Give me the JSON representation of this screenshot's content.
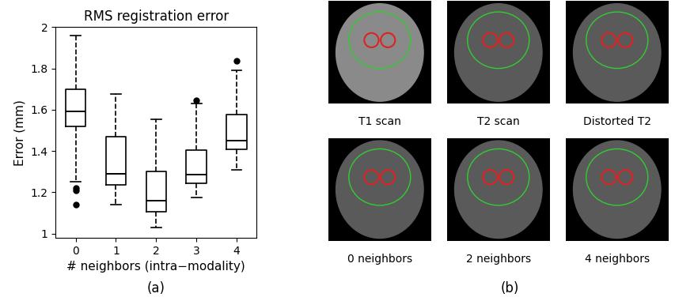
{
  "chart_data": {
    "type": "box",
    "title": "RMS registration error",
    "x_label": "# neighbors (intra−modality)",
    "y_label": "Error (mm)",
    "categories": [
      "0",
      "1",
      "2",
      "3",
      "4"
    ],
    "boxes": [
      {
        "whislo": 1.25,
        "q1": 1.52,
        "med": 1.59,
        "q3": 1.7,
        "whishi": 1.96,
        "fliers": [
          1.14,
          1.21,
          1.22
        ]
      },
      {
        "whislo": 1.14,
        "q1": 1.235,
        "med": 1.29,
        "q3": 1.47,
        "whishi": 1.675,
        "fliers": []
      },
      {
        "whislo": 1.03,
        "q1": 1.105,
        "med": 1.16,
        "q3": 1.3,
        "whishi": 1.555,
        "fliers": []
      },
      {
        "whislo": 1.175,
        "q1": 1.245,
        "med": 1.285,
        "q3": 1.405,
        "whishi": 1.63,
        "fliers": [
          1.645
        ]
      },
      {
        "whislo": 1.31,
        "q1": 1.41,
        "med": 1.45,
        "q3": 1.575,
        "whishi": 1.79,
        "fliers": [
          1.835
        ]
      }
    ],
    "color": "#000000",
    "ylim": [
      0.98,
      2.0
    ],
    "yticks": [
      1,
      1.2,
      1.4,
      1.6,
      1.8,
      2
    ]
  },
  "panel_a_label": "(a)",
  "panel_b": {
    "label": "(b)",
    "images": [
      "T1 scan",
      "T2 scan",
      "Distorted T2",
      "0 neighbors",
      "2 neighbors",
      "4 neighbors"
    ]
  }
}
